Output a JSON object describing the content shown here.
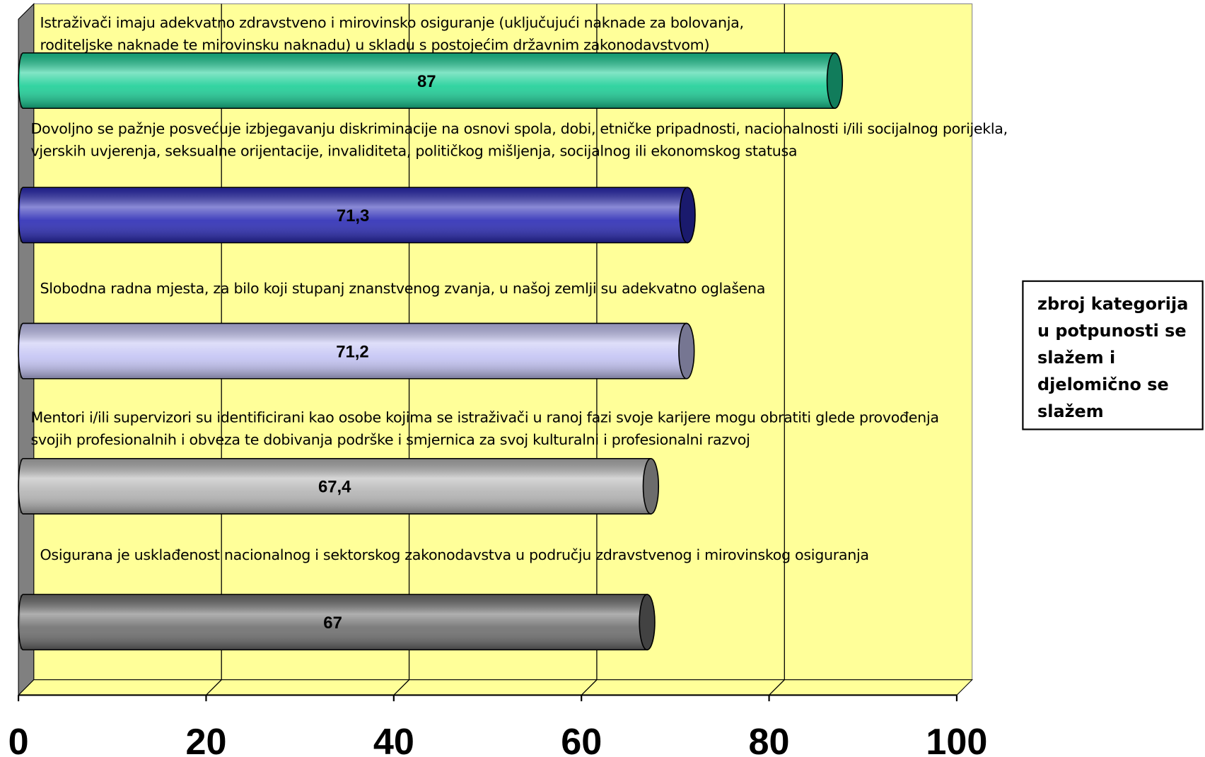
{
  "chart_data": {
    "type": "bar",
    "orientation": "horizontal",
    "categories": [
      "Istraživači imaju adekvatno zdravstveno i mirovinsko osiguranje (uključujući naknade za bolovanja, roditeljske naknade te mirovinsku naknadu) u skladu s postojećim državnim zakonodavstvom)",
      "Dovoljno se pažnje posvećuje izbjegavanju diskriminacije na osnovi spola, dobi, etničke pripadnosti, nacionalnosti i/ili socijalnog porijekla, vjerskih uvjerenja, seksualne orijentacije, invaliditeta, političkog mišljenja, socijalnog ili ekonomskog statusa",
      "Slobodna radna mjesta, za bilo koji stupanj znanstvenog zvanja, u našoj zemlji su adekvatno oglašena",
      "Mentori i/ili supervizori su identificirani kao osobe kojima se istraživači u ranoj fazi svoje karijere mogu obratiti glede provođenja svojih profesionalnih i obveza te dobivanja podrške i smjernica za svoj kulturalni i profesionalni razvoj",
      "Osigurana je usklađenost nacionalnog i sektorskog zakonodavstva u području zdravstvenog i mirovinskog osiguranja"
    ],
    "values": [
      87,
      71.3,
      71.2,
      67.4,
      67
    ],
    "value_labels": [
      "87",
      "71,3",
      "71,2",
      "67,4",
      "67"
    ],
    "colors": [
      "#1ccf97",
      "#2b2bb5",
      "#c4c4f4",
      "#b4b4b4",
      "#6e6e6e"
    ],
    "xlim": [
      0,
      100
    ],
    "xticks": [
      0,
      20,
      40,
      60,
      80,
      100
    ],
    "grid": true,
    "annotation": "zbroj kategorija u potpunosti se slažem i djelomično se slažem"
  }
}
